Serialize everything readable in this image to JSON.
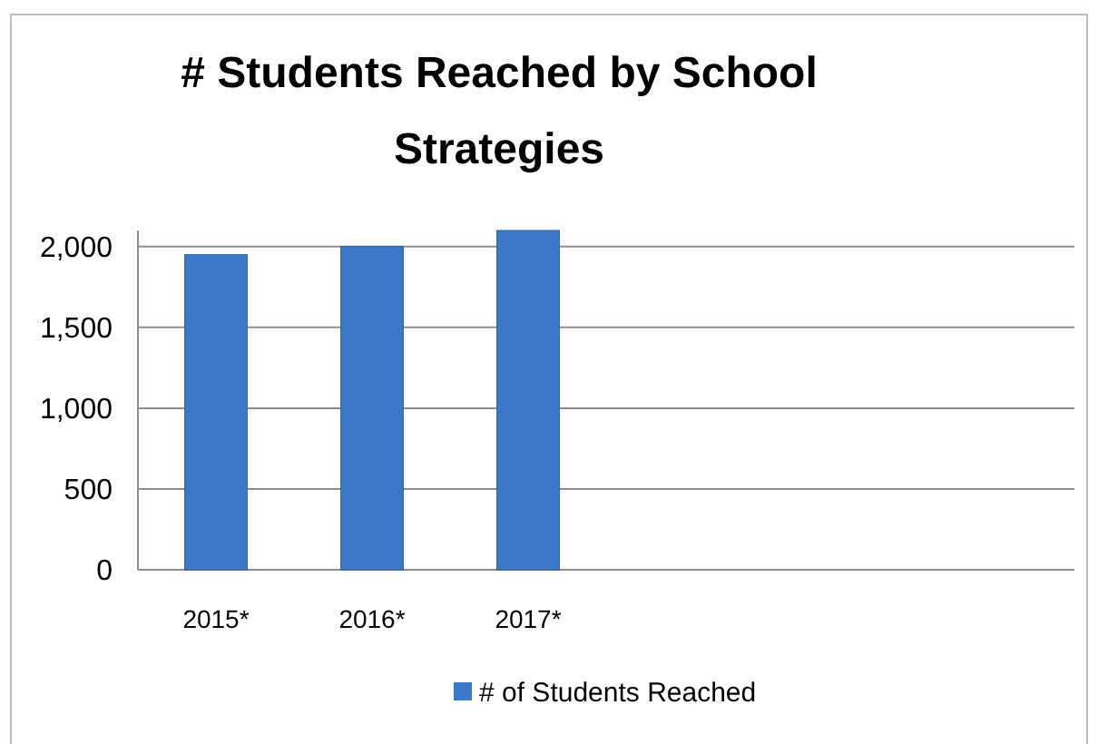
{
  "chart_data": {
    "type": "bar",
    "title": "# Students Reached by School Strategies",
    "categories": [
      "2015*",
      "2016*",
      "2017*",
      null,
      null,
      null
    ],
    "series": [
      {
        "name": "# of Students Reached",
        "color": "#3c78c8",
        "values": [
          1950,
          2000,
          2100,
          null,
          null,
          null
        ]
      }
    ],
    "ylim": [
      0,
      2100
    ],
    "yticks": [
      0,
      500,
      {
        "value": 1000,
        "label": "1,000"
      },
      {
        "value": 1500,
        "label": "1,500"
      },
      {
        "value": 2000,
        "label": "2,000"
      }
    ],
    "grid": "y",
    "legend": "bottom"
  }
}
